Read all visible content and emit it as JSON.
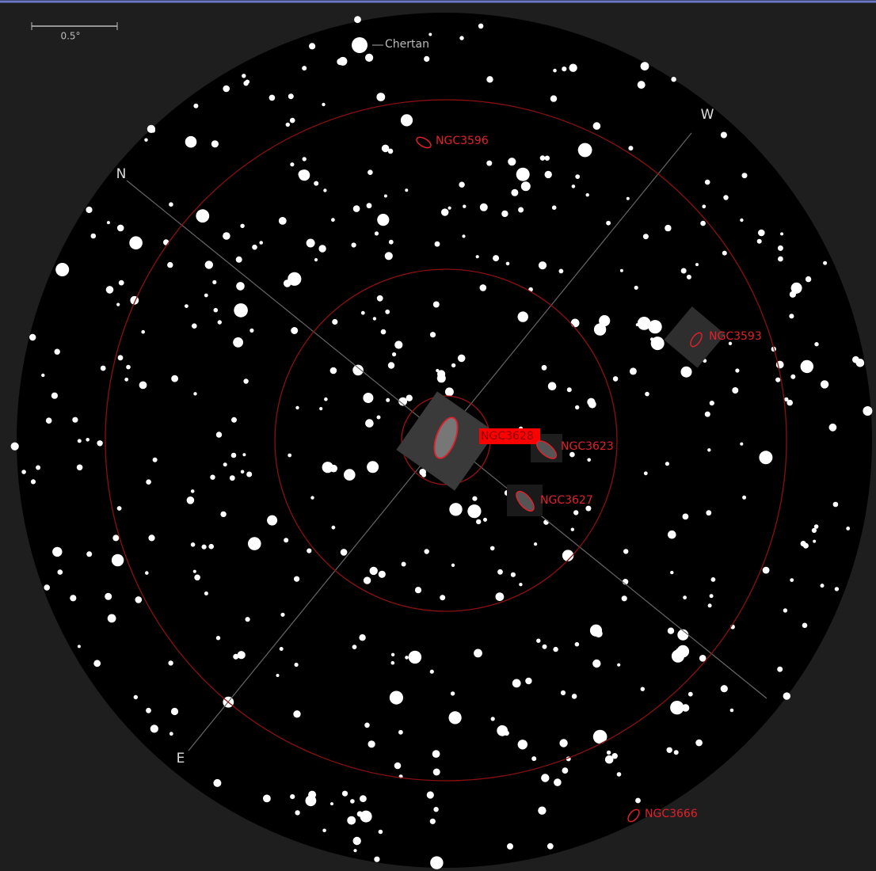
{
  "scale": {
    "label": "0.5°"
  },
  "compass": {
    "north": "N",
    "west": "W",
    "east": "E"
  },
  "objects": [
    {
      "label": "Chertan"
    },
    {
      "label": "NGC3596"
    },
    {
      "label": "NGC3593"
    },
    {
      "label": "NGC3628"
    },
    {
      "label": "NGC3623"
    },
    {
      "label": "NGC3627"
    },
    {
      "label": "NGC3666"
    }
  ]
}
